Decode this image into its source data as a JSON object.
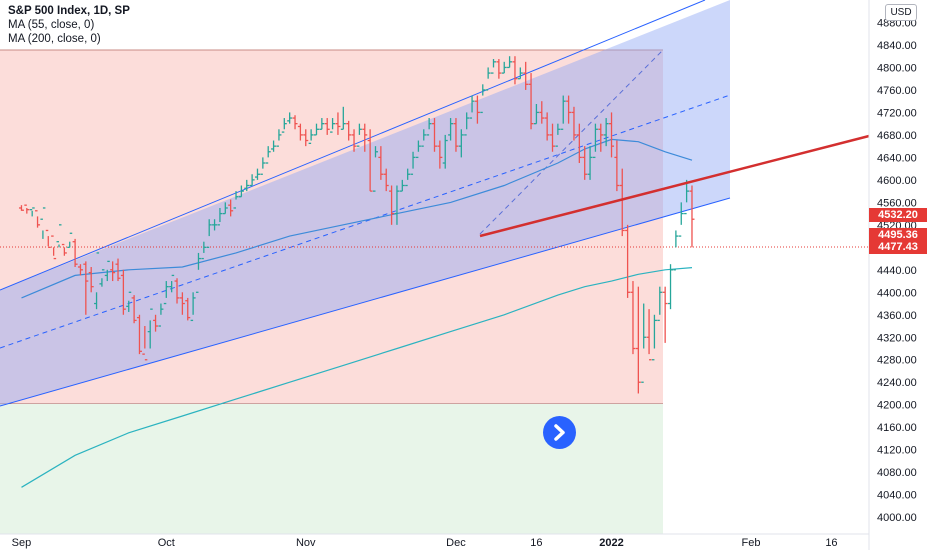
{
  "legend": {
    "title": "S&P 500 Index, 1D, SP",
    "ma1": "MA (55, close, 0)",
    "ma2": "MA (200, close, 0)"
  },
  "currency_label": "USD",
  "price_tags": [
    {
      "value": "4532.20",
      "color": "#e53935"
    },
    {
      "value": "4495.36",
      "color": "#e53935"
    },
    {
      "value": "4477.43",
      "color": "#e53935"
    }
  ],
  "colors": {
    "up": "#26a69a",
    "down": "#ef5350",
    "channel": "#2962ff",
    "ma55": "#3d8bd9",
    "ma200": "#2bb3c0",
    "trendline": "#d32f2f"
  },
  "icons": {
    "nav": "chevron-right-icon"
  },
  "chart_data": {
    "type": "bar",
    "subtype": "ohlc",
    "title": "S&P 500 Index, 1D, SP",
    "ylim": [
      3970,
      4920
    ],
    "y_ticks": [
      4000,
      4040,
      4080,
      4120,
      4160,
      4200,
      4240,
      4280,
      4320,
      4360,
      4400,
      4440,
      4480,
      4520,
      4560,
      4600,
      4640,
      4680,
      4720,
      4760,
      4800,
      4840,
      4880
    ],
    "x_ticks": [
      {
        "label": "Sep",
        "x": 0
      },
      {
        "label": "Oct",
        "x": 27
      },
      {
        "label": "Nov",
        "x": 53
      },
      {
        "label": "Dec",
        "x": 81
      },
      {
        "label": "16",
        "x": 96
      },
      {
        "label": "2022",
        "x": 110
      },
      {
        "label": "Feb",
        "x": 136
      },
      {
        "label": "16",
        "x": 151
      }
    ],
    "series": [
      {
        "name": "S&P 500 Index",
        "values": [
          [
            0,
            4550,
            4546,
            4545,
            4555
          ],
          [
            1,
            4555,
            4547,
            4550,
            4540
          ],
          [
            2,
            4547,
            4550,
            4535,
            4545
          ],
          [
            3,
            4545,
            4520,
            4515,
            4535
          ],
          [
            4,
            4530,
            4550,
            4495,
            4510
          ],
          [
            5,
            4510,
            4480,
            4482,
            4500
          ],
          [
            6,
            4500,
            4460,
            4465,
            4480
          ],
          [
            7,
            4490,
            4520,
            4480,
            4485
          ],
          [
            8,
            4485,
            4470,
            4465,
            4480
          ],
          [
            9,
            4480,
            4505,
            4480,
            4490
          ],
          [
            10,
            4490,
            4450,
            4445,
            4495
          ],
          [
            11,
            4445,
            4440,
            4430,
            4450
          ],
          [
            12,
            4450,
            4420,
            4360,
            4455
          ],
          [
            13,
            4435,
            4410,
            4400,
            4445
          ],
          [
            14,
            4380,
            4470,
            4370,
            4400
          ],
          [
            15,
            4415,
            4440,
            4410,
            4425
          ],
          [
            16,
            4430,
            4455,
            4420,
            4440
          ],
          [
            17,
            4440,
            4435,
            4420,
            4455
          ],
          [
            18,
            4450,
            4425,
            4420,
            4460
          ],
          [
            19,
            4430,
            4370,
            4360,
            4440
          ],
          [
            20,
            4375,
            4400,
            4365,
            4385
          ],
          [
            21,
            4390,
            4350,
            4345,
            4395
          ],
          [
            22,
            4355,
            4295,
            4290,
            4360
          ],
          [
            23,
            4290,
            4280,
            4300,
            4340
          ],
          [
            24,
            4330,
            4370,
            4300,
            4350
          ],
          [
            25,
            4350,
            4340,
            4360,
            4330
          ],
          [
            26,
            4340,
            4370,
            4360,
            4380
          ],
          [
            27,
            4380,
            4410,
            4390,
            4420
          ],
          [
            28,
            4410,
            4430,
            4400,
            4420
          ],
          [
            29,
            4420,
            4390,
            4380,
            4425
          ],
          [
            30,
            4390,
            4380,
            4360,
            4400
          ],
          [
            31,
            4385,
            4355,
            4350,
            4390
          ],
          [
            32,
            4350,
            4390,
            4360,
            4400
          ],
          [
            33,
            4400,
            4460,
            4440,
            4470
          ],
          [
            34,
            4460,
            4480,
            4470,
            4490
          ],
          [
            35,
            4480,
            4520,
            4500,
            4530
          ],
          [
            36,
            4520,
            4520,
            4510,
            4530
          ],
          [
            37,
            4520,
            4540,
            4525,
            4550
          ],
          [
            38,
            4540,
            4550,
            4540,
            4560
          ],
          [
            39,
            4555,
            4545,
            4535,
            4565
          ],
          [
            40,
            4550,
            4570,
            4565,
            4580
          ],
          [
            41,
            4570,
            4580,
            4570,
            4590
          ],
          [
            42,
            4585,
            4590,
            4580,
            4600
          ],
          [
            43,
            4590,
            4600,
            4590,
            4610
          ],
          [
            44,
            4605,
            4610,
            4600,
            4620
          ],
          [
            45,
            4610,
            4630,
            4620,
            4640
          ],
          [
            46,
            4630,
            4650,
            4640,
            4660
          ],
          [
            47,
            4655,
            4660,
            4650,
            4670
          ],
          [
            48,
            4660,
            4680,
            4670,
            4690
          ],
          [
            49,
            4685,
            4700,
            4690,
            4710
          ],
          [
            50,
            4705,
            4710,
            4700,
            4720
          ],
          [
            51,
            4710,
            4700,
            4690,
            4715
          ],
          [
            52,
            4695,
            4680,
            4670,
            4700
          ],
          [
            53,
            4680,
            4670,
            4660,
            4690
          ],
          [
            54,
            4665,
            4680,
            4670,
            4690
          ],
          [
            55,
            4680,
            4690,
            4680,
            4700
          ],
          [
            56,
            4690,
            4700,
            4690,
            4710
          ],
          [
            57,
            4700,
            4690,
            4680,
            4710
          ],
          [
            58,
            4685,
            4700,
            4690,
            4710
          ],
          [
            59,
            4700,
            4695,
            4680,
            4720
          ],
          [
            60,
            4690,
            4700,
            4690,
            4730
          ],
          [
            61,
            4700,
            4680,
            4670,
            4705
          ],
          [
            62,
            4680,
            4660,
            4650,
            4690
          ],
          [
            63,
            4660,
            4690,
            4680,
            4700
          ],
          [
            64,
            4690,
            4680,
            4650,
            4700
          ],
          [
            65,
            4670,
            4580,
            4580,
            4690
          ],
          [
            66,
            4580,
            4650,
            4640,
            4660
          ],
          [
            67,
            4640,
            4610,
            4600,
            4660
          ],
          [
            68,
            4610,
            4590,
            4580,
            4620
          ],
          [
            69,
            4580,
            4540,
            4520,
            4590
          ],
          [
            70,
            4540,
            4580,
            4520,
            4590
          ],
          [
            71,
            4580,
            4590,
            4580,
            4600
          ],
          [
            72,
            4590,
            4610,
            4600,
            4620
          ],
          [
            73,
            4610,
            4640,
            4620,
            4650
          ],
          [
            74,
            4640,
            4660,
            4650,
            4670
          ],
          [
            75,
            4660,
            4680,
            4670,
            4690
          ],
          [
            76,
            4680,
            4700,
            4690,
            4710
          ],
          [
            77,
            4700,
            4660,
            4650,
            4710
          ],
          [
            78,
            4660,
            4640,
            4620,
            4670
          ],
          [
            79,
            4630,
            4670,
            4620,
            4680
          ],
          [
            80,
            4680,
            4700,
            4670,
            4710
          ],
          [
            81,
            4700,
            4660,
            4650,
            4710
          ],
          [
            82,
            4660,
            4680,
            4640,
            4690
          ],
          [
            83,
            4680,
            4710,
            4690,
            4720
          ],
          [
            84,
            4710,
            4740,
            4720,
            4750
          ],
          [
            85,
            4740,
            4720,
            4700,
            4750
          ],
          [
            86,
            4720,
            4760,
            4750,
            4770
          ],
          [
            87,
            4760,
            4790,
            4780,
            4800
          ],
          [
            88,
            4790,
            4810,
            4800,
            4815
          ],
          [
            89,
            4810,
            4790,
            4780,
            4815
          ],
          [
            90,
            4790,
            4800,
            4790,
            4810
          ],
          [
            91,
            4800,
            4810,
            4800,
            4820
          ],
          [
            92,
            4810,
            4780,
            4770,
            4820
          ],
          [
            93,
            4780,
            4790,
            4780,
            4800
          ],
          [
            94,
            4790,
            4770,
            4760,
            4810
          ],
          [
            95,
            4770,
            4700,
            4690,
            4790
          ],
          [
            96,
            4700,
            4720,
            4700,
            4735
          ],
          [
            97,
            4720,
            4710,
            4700,
            4740
          ],
          [
            98,
            4710,
            4680,
            4670,
            4720
          ],
          [
            99,
            4680,
            4660,
            4650,
            4700
          ],
          [
            100,
            4660,
            4690,
            4680,
            4700
          ],
          [
            101,
            4690,
            4740,
            4700,
            4750
          ],
          [
            102,
            4740,
            4720,
            4700,
            4750
          ],
          [
            103,
            4720,
            4680,
            4670,
            4730
          ],
          [
            104,
            4680,
            4640,
            4630,
            4700
          ],
          [
            105,
            4640,
            4610,
            4600,
            4660
          ],
          [
            106,
            4610,
            4640,
            4600,
            4660
          ],
          [
            107,
            4640,
            4690,
            4650,
            4700
          ],
          [
            108,
            4690,
            4680,
            4650,
            4700
          ],
          [
            109,
            4680,
            4700,
            4660,
            4710
          ],
          [
            110,
            4700,
            4660,
            4640,
            4720
          ],
          [
            111,
            4640,
            4590,
            4580,
            4670
          ],
          [
            112,
            4590,
            4510,
            4500,
            4620
          ],
          [
            113,
            4510,
            4400,
            4390,
            4520
          ],
          [
            114,
            4400,
            4300,
            4290,
            4420
          ],
          [
            115,
            4300,
            4240,
            4220,
            4410
          ],
          [
            116,
            4240,
            4320,
            4300,
            4380
          ],
          [
            117,
            4320,
            4280,
            4290,
            4370
          ],
          [
            118,
            4280,
            4350,
            4300,
            4360
          ],
          [
            119,
            4350,
            4400,
            4360,
            4410
          ],
          [
            120,
            4400,
            4380,
            4310,
            4410
          ],
          [
            121,
            4380,
            4440,
            4370,
            4450
          ],
          [
            122,
            4440,
            4500,
            4480,
            4510
          ],
          [
            123,
            4500,
            4540,
            4520,
            4560
          ],
          [
            124,
            4540,
            4580,
            4560,
            4600
          ],
          [
            125,
            4580,
            4530,
            4480,
            4590
          ]
        ]
      },
      {
        "name": "MA (55, close, 0)",
        "values": [
          [
            0,
            4390
          ],
          [
            10,
            4430
          ],
          [
            20,
            4440
          ],
          [
            30,
            4445
          ],
          [
            40,
            4470
          ],
          [
            50,
            4500
          ],
          [
            60,
            4520
          ],
          [
            70,
            4540
          ],
          [
            80,
            4560
          ],
          [
            90,
            4590
          ],
          [
            100,
            4630
          ],
          [
            105,
            4655
          ],
          [
            110,
            4672
          ],
          [
            115,
            4668
          ],
          [
            120,
            4650
          ],
          [
            125,
            4635
          ]
        ]
      },
      {
        "name": "MA (200, close, 0)",
        "values": [
          [
            0,
            4053
          ],
          [
            10,
            4110
          ],
          [
            20,
            4150
          ],
          [
            30,
            4180
          ],
          [
            40,
            4210
          ],
          [
            50,
            4240
          ],
          [
            60,
            4270
          ],
          [
            70,
            4300
          ],
          [
            80,
            4330
          ],
          [
            90,
            4360
          ],
          [
            100,
            4395
          ],
          [
            105,
            4410
          ],
          [
            110,
            4420
          ],
          [
            115,
            4432
          ],
          [
            120,
            4440
          ],
          [
            125,
            4444
          ]
        ]
      }
    ],
    "annotations": [
      {
        "type": "price_range",
        "from": 4200,
        "to": 4820,
        "color": "red"
      },
      {
        "type": "price_range",
        "from": 3970,
        "to": 4200,
        "color": "green"
      },
      {
        "type": "parallel_channel"
      },
      {
        "type": "trendline",
        "color": "red"
      }
    ]
  }
}
